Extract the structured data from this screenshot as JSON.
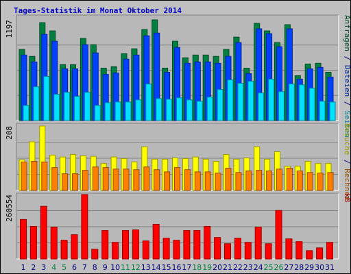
{
  "chart_data": [
    {
      "type": "bar",
      "title": "Tages-Statistik im Monat Oktober 2014",
      "legend_separator": " / ",
      "categories": [
        "1",
        "2",
        "3",
        "4",
        "5",
        "6",
        "7",
        "8",
        "9",
        "10",
        "11",
        "12",
        "13",
        "14",
        "15",
        "16",
        "17",
        "18",
        "19",
        "20",
        "21",
        "22",
        "23",
        "24",
        "25",
        "26",
        "27",
        "28",
        "29",
        "30",
        "31"
      ],
      "label_colors": [
        "#000080",
        "#000080",
        "#000080",
        "#008040",
        "#008040",
        "#000080",
        "#000080",
        "#000080",
        "#000080",
        "#000080",
        "#008040",
        "#008040",
        "#000080",
        "#000080",
        "#000080",
        "#000080",
        "#000080",
        "#008040",
        "#008040",
        "#000080",
        "#000080",
        "#000080",
        "#000080",
        "#000080",
        "#008040",
        "#008040",
        "#000080",
        "#000080",
        "#000080",
        "#000080",
        "#000080"
      ],
      "ylim": [
        0,
        1197
      ],
      "yticks": [
        1197
      ],
      "series": [
        {
          "name": "Anfragen",
          "color": "#008040",
          "values": [
            845,
            763,
            1164,
            1066,
            664,
            664,
            976,
            902,
            623,
            640,
            795,
            853,
            1082,
            1197,
            623,
            943,
            746,
            779,
            779,
            763,
            845,
            992,
            623,
            1156,
            1066,
            927,
            1140,
            533,
            672,
            681,
            574
          ]
        },
        {
          "name": "Dateien",
          "color": "#0040ff",
          "values": [
            779,
            697,
            1025,
            943,
            615,
            615,
            902,
            804,
            549,
            566,
            730,
            779,
            1007,
            1040,
            574,
            869,
            681,
            697,
            697,
            681,
            763,
            927,
            558,
            1091,
            1033,
            878,
            1091,
            492,
            615,
            632,
            517
          ]
        },
        {
          "name": "Seiten",
          "color": "#00e0ff",
          "values": [
            180,
            402,
            525,
            312,
            336,
            287,
            336,
            180,
            213,
            221,
            221,
            246,
            435,
            262,
            254,
            271,
            246,
            230,
            279,
            369,
            484,
            443,
            467,
            328,
            492,
            344,
            435,
            426,
            385,
            230,
            221
          ]
        }
      ]
    },
    {
      "type": "bar",
      "legend_separator": " / ",
      "ylim": [
        0,
        208
      ],
      "yticks": [
        208
      ],
      "series": [
        {
          "name": "Besuche",
          "color": "#ffff00",
          "values": [
            99,
            157,
            208,
            114,
            108,
            116,
            112,
            110,
            87,
            108,
            103,
            92,
            141,
            101,
            101,
            105,
            103,
            108,
            101,
            94,
            116,
            101,
            105,
            141,
            101,
            125,
            78,
            78,
            94,
            87,
            87
          ]
        },
        {
          "name": "Rechner",
          "color": "#ff8000",
          "values": [
            92,
            94,
            92,
            74,
            54,
            54,
            65,
            76,
            74,
            69,
            69,
            67,
            76,
            67,
            60,
            74,
            67,
            60,
            60,
            56,
            72,
            58,
            63,
            65,
            63,
            69,
            72,
            63,
            58,
            56,
            58
          ]
        }
      ]
    },
    {
      "type": "bar",
      "ylim": [
        0,
        260554
      ],
      "yticks": [
        260554
      ],
      "series": [
        {
          "name": "kB",
          "color": "#ff0000",
          "values": [
            159714,
            131694,
            212952,
            128892,
            75654,
            98070,
            260554,
            39228,
            114882,
            67248,
            114882,
            117684,
            72852,
            140100,
            84060,
            75654,
            114882,
            114882,
            131694,
            86862,
            61644,
            84060,
            67248,
            128892,
            61644,
            196140,
            81258,
            70050,
            33624,
            44832,
            67248
          ]
        }
      ]
    }
  ]
}
